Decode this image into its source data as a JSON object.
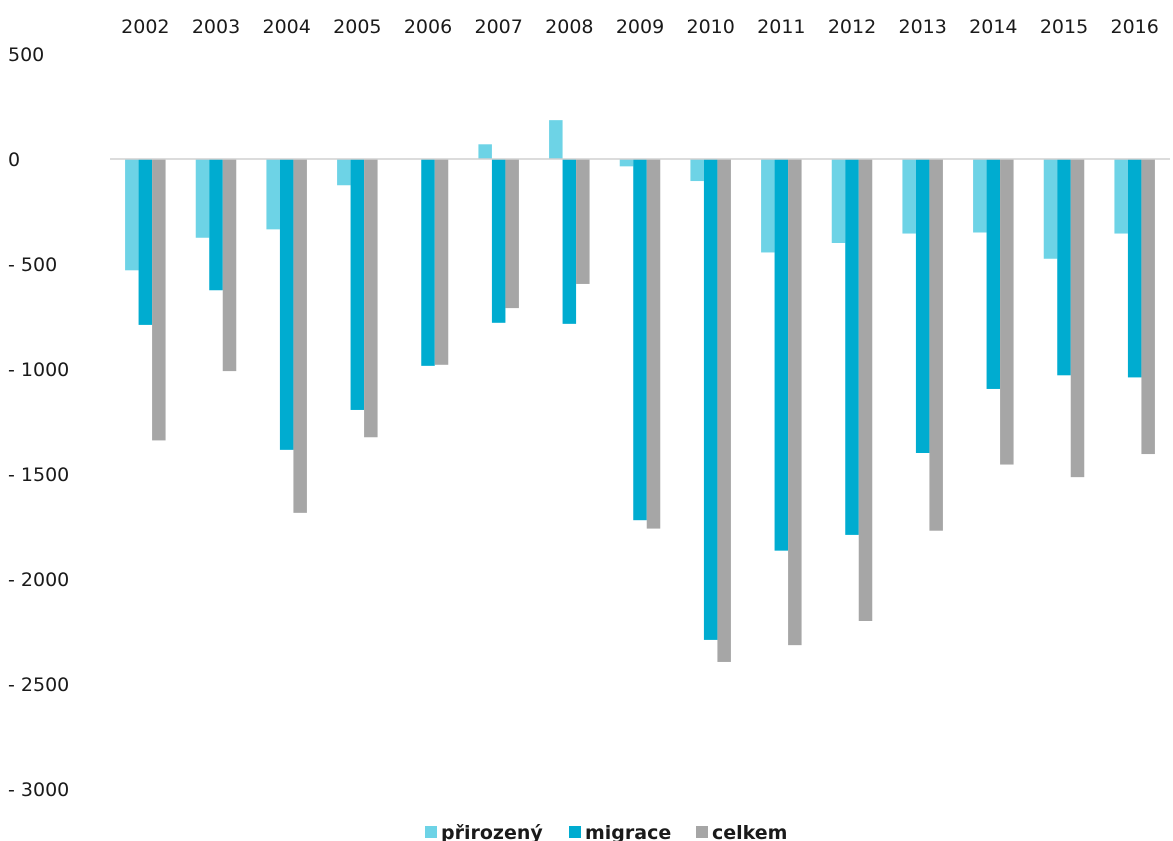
{
  "chart_data": {
    "type": "bar",
    "title": "",
    "xlabel": "",
    "ylabel": "",
    "categories": [
      "2002",
      "2003",
      "2004",
      "2005",
      "2006",
      "2007",
      "2008",
      "2009",
      "2010",
      "2011",
      "2012",
      "2013",
      "2014",
      "2015",
      "2016"
    ],
    "x_axis_position": "top",
    "ylim": [
      -3000,
      500
    ],
    "yticks": [
      500,
      0,
      -500,
      -1000,
      -1500,
      -2000,
      -2500,
      -3000
    ],
    "ytick_labels": [
      "500",
      "0",
      "- 500",
      "- 1000",
      "- 1500",
      "- 2000",
      "- 2500",
      "- 3000"
    ],
    "grid": false,
    "legend_position": "bottom-center",
    "series": [
      {
        "name": "přirozený",
        "color": "#6dd3e6",
        "values": [
          -530,
          -375,
          -335,
          -125,
          0,
          70,
          185,
          -35,
          -105,
          -445,
          -400,
          -355,
          -350,
          -475,
          -355
        ]
      },
      {
        "name": "migrace",
        "color": "#00acd0",
        "values": [
          -790,
          -625,
          -1385,
          -1195,
          -985,
          -780,
          -785,
          -1720,
          -2290,
          -1865,
          -1790,
          -1400,
          -1095,
          -1030,
          -1040
        ]
      },
      {
        "name": "celkem",
        "color": "#a6a6a6",
        "values": [
          -1340,
          -1010,
          -1685,
          -1325,
          -980,
          -710,
          -595,
          -1760,
          -2395,
          -2315,
          -2200,
          -1770,
          -1455,
          -1515,
          -1405
        ]
      }
    ]
  }
}
